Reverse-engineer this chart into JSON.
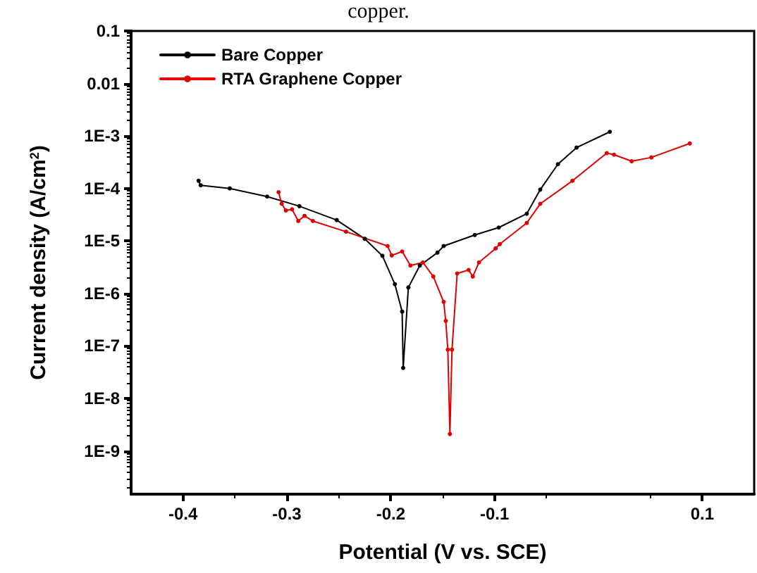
{
  "chart_data": {
    "type": "line",
    "annotations": [
      "copper."
    ],
    "xlabel": "Potential (V vs. SCE)",
    "ylabel": "Current density (A/cm$^{2}$)",
    "log": "y",
    "xlim": [
      -0.45,
      0.15
    ],
    "xticks": [
      -0.4,
      -0.3,
      -0.2,
      -0.1,
      0.1
    ],
    "ylim": [
      1.5e-10,
      0.1
    ],
    "yticks": [
      0.1,
      0.01,
      {
        "value": 0.001,
        "label": "1E-3"
      },
      {
        "value": 0.0001,
        "label": "1E-4"
      },
      {
        "value": 1e-05,
        "label": "1E-5"
      },
      {
        "value": 1e-06,
        "label": "1E-6"
      },
      {
        "value": 1e-07,
        "label": "1E-7"
      },
      {
        "value": 1e-08,
        "label": "1E-8"
      },
      {
        "value": 1e-09,
        "label": "1E-9"
      }
    ],
    "grid": false,
    "legend": "top left",
    "marker": "circle",
    "line_style": "solid",
    "series": [
      {
        "name": "Bare Copper",
        "color": "#000000",
        "x": [
          -0.385,
          -0.383,
          -0.355,
          -0.319,
          -0.288,
          -0.252,
          -0.225,
          -0.208,
          -0.196,
          -0.189,
          -0.188,
          -0.183,
          -0.172,
          -0.155,
          -0.149,
          -0.119,
          -0.096,
          -0.069,
          -0.056,
          -0.039,
          -0.021,
          0.011
        ],
        "values": [
          0.00014,
          0.000115,
          0.0001,
          7e-05,
          4.6e-05,
          2.5e-05,
          1.1e-05,
          5.2e-06,
          1.5e-06,
          4.5e-07,
          3.8e-08,
          1.3e-06,
          3.4e-06,
          6e-06,
          8e-06,
          1.3e-05,
          1.8e-05,
          3.3e-05,
          9.5e-05,
          0.00029,
          0.0006,
          0.0012
        ]
      },
      {
        "name": "RTA Graphene Copper",
        "color": "#e00000",
        "x": [
          -0.308,
          -0.305,
          -0.301,
          -0.295,
          -0.289,
          -0.283,
          -0.275,
          -0.243,
          -0.203,
          -0.199,
          -0.189,
          -0.181,
          -0.169,
          -0.159,
          -0.149,
          -0.147,
          -0.145,
          -0.143,
          -0.141,
          -0.136,
          -0.125,
          -0.121,
          -0.115,
          -0.099,
          -0.095,
          -0.069,
          -0.056,
          -0.025,
          0.008,
          0.015,
          0.032,
          0.051,
          0.088
        ],
        "values": [
          8.5e-05,
          5.1e-05,
          3.8e-05,
          4e-05,
          2.4e-05,
          3e-05,
          2.4e-05,
          1.5e-05,
          8e-06,
          5.3e-06,
          6.3e-06,
          3.4e-06,
          3.9e-06,
          2.1e-06,
          6.9e-07,
          3e-07,
          8.5e-08,
          2.1e-09,
          8.5e-08,
          2.4e-06,
          2.8e-06,
          2.1e-06,
          3.9e-06,
          7.2e-06,
          8.7e-06,
          2.2e-05,
          5.1e-05,
          0.00014,
          0.00047,
          0.00044,
          0.00033,
          0.00039,
          0.00072
        ]
      }
    ]
  }
}
